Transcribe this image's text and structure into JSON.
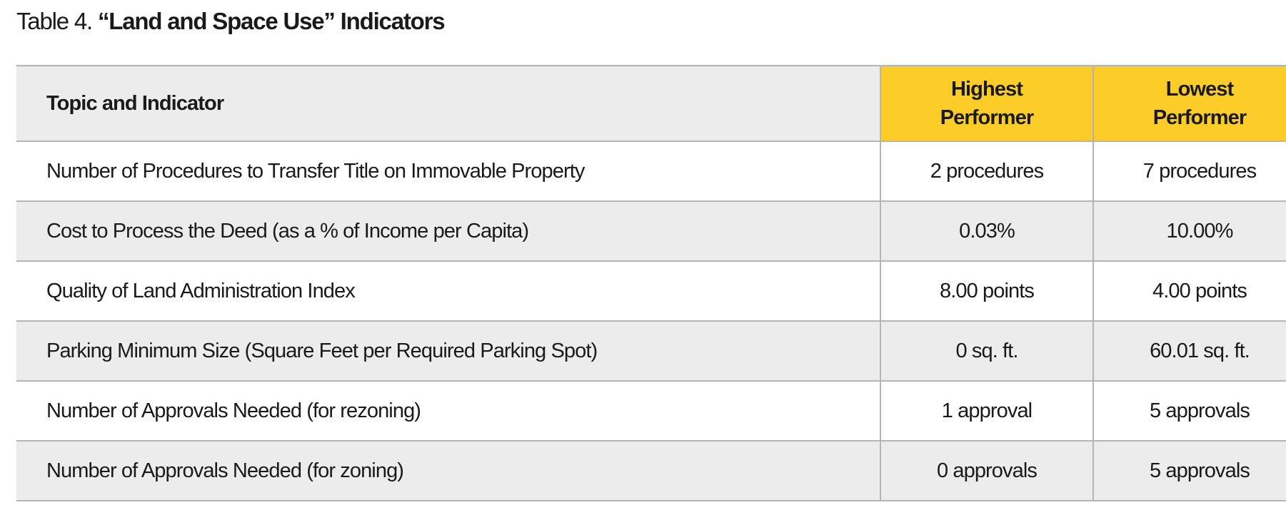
{
  "title": {
    "prefix": "Table 4.",
    "main": "“Land and Space Use” Indicators"
  },
  "table": {
    "headers": {
      "topic": "Topic and Indicator",
      "highest_line1": "Highest",
      "highest_line2": "Performer",
      "lowest_line1": "Lowest",
      "lowest_line2": "Performer"
    },
    "rows": [
      {
        "indicator": "Number of Procedures to Transfer Title on Immovable Property",
        "highest": "2 procedures",
        "lowest": "7 procedures"
      },
      {
        "indicator": "Cost to Process the Deed (as a % of Income per Capita)",
        "highest": "0.03%",
        "lowest": "10.00%"
      },
      {
        "indicator": "Quality of Land Administration Index",
        "highest": "8.00 points",
        "lowest": "4.00 points"
      },
      {
        "indicator": "Parking Minimum Size (Square Feet per Required Parking Spot)",
        "highest": "0 sq. ft.",
        "lowest": "60.01 sq. ft."
      },
      {
        "indicator": "Number of Approvals Needed (for rezoning)",
        "highest": "1 approval",
        "lowest": "5 approvals"
      },
      {
        "indicator": "Number of Approvals Needed (for zoning)",
        "highest": "0 approvals",
        "lowest": "5 approvals"
      }
    ]
  },
  "colors": {
    "header_highlight": "#fccc28",
    "row_shade": "#ececec",
    "rule": "#b4b4b4"
  }
}
